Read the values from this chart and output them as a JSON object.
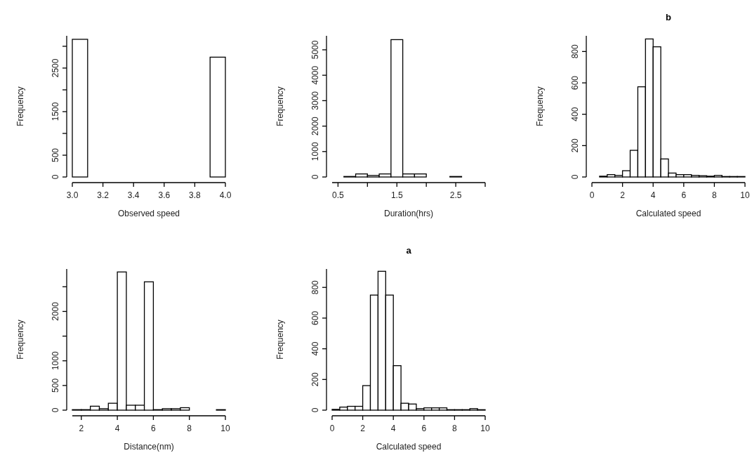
{
  "chart_data": [
    {
      "type": "histogram",
      "xlabel": "Observed speed",
      "ylabel": "Frequency",
      "color": "#ffffff",
      "bins": [
        3.0,
        3.1,
        3.2,
        3.3,
        3.4,
        3.5,
        3.6,
        3.7,
        3.8,
        3.9,
        4.0
      ],
      "values": [
        3160,
        0,
        0,
        0,
        0,
        0,
        0,
        0,
        0,
        2750
      ],
      "xlim": [
        3,
        4
      ],
      "ylim": [
        0,
        3240
      ],
      "xticks": [
        {
          "value": 3,
          "label": "3.0"
        },
        {
          "value": 3.2,
          "label": "3.2"
        },
        {
          "value": 3.4,
          "label": "3.4"
        },
        {
          "value": 3.6,
          "label": "3.6"
        },
        {
          "value": 3.8,
          "label": "3.8"
        },
        {
          "value": 4,
          "label": "4.0"
        }
      ],
      "yticks": [
        0,
        500,
        {
          "value": 1000,
          "label": null
        },
        1500,
        {
          "value": 2000,
          "label": null
        },
        2500,
        {
          "value": 3000,
          "label": null
        }
      ],
      "grid": false
    },
    {
      "type": "histogram",
      "xlabel": "Duration(hrs)",
      "ylabel": "Frequency",
      "color": "#ffffff",
      "bins": [
        0.4,
        0.6,
        0.8,
        1.0,
        1.2,
        1.4,
        1.6,
        1.8,
        2.0,
        2.2,
        2.4,
        2.6,
        2.8,
        3.0
      ],
      "values": [
        0,
        20,
        120,
        60,
        120,
        5400,
        120,
        120,
        0,
        0,
        20,
        0,
        0
      ],
      "xlim": [
        0.4,
        3.0
      ],
      "ylim": [
        0,
        5550
      ],
      "xticks": [
        0.5,
        {
          "value": 1,
          "label": null
        },
        1.5,
        {
          "value": 2,
          "label": null
        },
        2.5,
        {
          "value": 3,
          "label": null
        }
      ],
      "yticks": [
        0,
        1000,
        2000,
        3000,
        4000,
        5000
      ],
      "grid": false
    },
    {
      "type": "histogram",
      "title": "b",
      "xlabel": "Calculated speed",
      "ylabel": "Frequency",
      "color": "#ffffff",
      "bins": [
        0,
        0.5,
        1,
        1.5,
        2,
        2.5,
        3,
        3.5,
        4,
        4.5,
        5,
        5.5,
        6,
        6.5,
        7,
        7.5,
        8,
        8.5,
        9,
        9.5,
        10
      ],
      "values": [
        0,
        5,
        15,
        10,
        40,
        170,
        575,
        880,
        830,
        115,
        25,
        15,
        15,
        10,
        8,
        5,
        10,
        3,
        3,
        3
      ],
      "xlim": [
        0,
        10
      ],
      "ylim": [
        0,
        900
      ],
      "xticks": [
        0,
        2,
        4,
        6,
        8,
        10
      ],
      "yticks": [
        0,
        200,
        400,
        600,
        800
      ],
      "grid": false
    },
    {
      "type": "histogram",
      "xlabel": "Distance(nm)",
      "ylabel": "Frequency",
      "color": "#ffffff",
      "bins": [
        1.5,
        2,
        2.5,
        3,
        3.5,
        4,
        4.5,
        5,
        5.5,
        6,
        6.5,
        7,
        7.5,
        8,
        8.5,
        9,
        9.5,
        10
      ],
      "values": [
        10,
        10,
        80,
        30,
        140,
        2800,
        100,
        100,
        2600,
        10,
        30,
        30,
        50,
        0,
        0,
        0,
        10
      ],
      "xlim": [
        1.5,
        10
      ],
      "ylim": [
        0,
        2860
      ],
      "xticks": [
        2,
        4,
        6,
        8,
        10
      ],
      "yticks": [
        0,
        500,
        1000,
        {
          "value": 1500,
          "label": null
        },
        2000,
        {
          "value": 2500,
          "label": null
        }
      ],
      "grid": false
    },
    {
      "type": "histogram",
      "title": "a",
      "xlabel": "Calculated speed",
      "ylabel": "Frequency",
      "color": "#ffffff",
      "bins": [
        0,
        0.5,
        1,
        1.5,
        2,
        2.5,
        3,
        3.5,
        4,
        4.5,
        5,
        5.5,
        6,
        6.5,
        7,
        7.5,
        8,
        8.5,
        9,
        9.5,
        10
      ],
      "values": [
        5,
        20,
        25,
        25,
        160,
        750,
        905,
        750,
        290,
        45,
        40,
        10,
        15,
        15,
        15,
        3,
        3,
        3,
        10,
        3
      ],
      "xlim": [
        0,
        10
      ],
      "ylim": [
        0,
        920
      ],
      "xticks": [
        0,
        2,
        4,
        6,
        8,
        10
      ],
      "yticks": [
        0,
        200,
        400,
        600,
        800
      ],
      "grid": false
    }
  ]
}
